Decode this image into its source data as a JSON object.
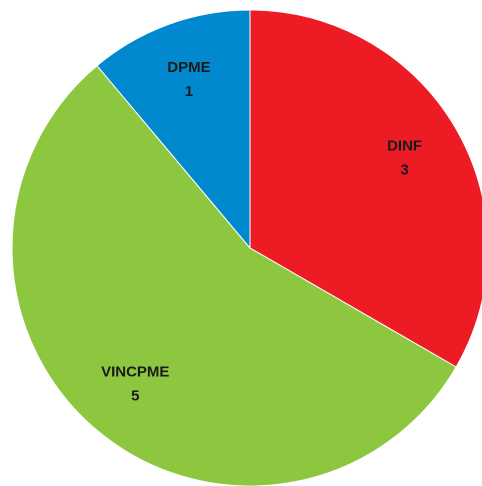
{
  "chart_data": {
    "type": "pie",
    "categories": [
      "DINF",
      "VINCPME",
      "DPME"
    ],
    "values": [
      3,
      5,
      1
    ],
    "colors": [
      "#ed1c24",
      "#8dc63f",
      "#0089cf"
    ]
  }
}
